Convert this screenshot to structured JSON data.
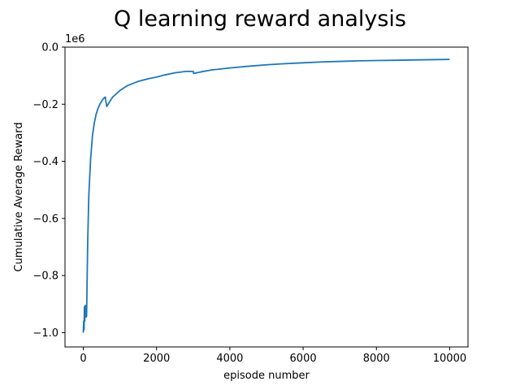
{
  "chart_data": {
    "type": "line",
    "title": "Q learning reward analysis",
    "xlabel": "episode number",
    "ylabel": "Cumulative Average Reward",
    "y_offset_label": "1e6",
    "xlim": [
      -500,
      10500
    ],
    "ylim": [
      -1.05,
      0.0
    ],
    "x_ticks": [
      0,
      2000,
      4000,
      6000,
      8000,
      10000
    ],
    "x_tick_labels": [
      "0",
      "2000",
      "4000",
      "6000",
      "8000",
      "10000"
    ],
    "y_ticks": [
      0.0,
      -0.2,
      -0.4,
      -0.6,
      -0.8,
      -1.0
    ],
    "y_tick_labels": [
      "0.0",
      "−0.2",
      "−0.4",
      "−0.6",
      "−0.8",
      "−1.0"
    ],
    "grid": false,
    "legend": "none",
    "series": [
      {
        "color": "#1f77b4",
        "x": [
          0,
          10,
          20,
          30,
          40,
          50,
          60,
          70,
          80,
          90,
          100,
          120,
          150,
          200,
          250,
          300,
          350,
          400,
          450,
          500,
          550,
          600,
          610,
          640,
          700,
          800,
          1000,
          1200,
          1500,
          1800,
          2000,
          2200,
          2500,
          2800,
          2950,
          3000,
          3010,
          3200,
          3500,
          4000,
          4500,
          5000,
          5500,
          6000,
          6500,
          7000,
          7500,
          8000,
          8500,
          9000,
          9500,
          10000
        ],
        "y": [
          -1.0,
          -0.96,
          -0.99,
          -0.91,
          -0.96,
          -0.905,
          -0.935,
          -0.905,
          -0.945,
          -0.94,
          -0.85,
          -0.68,
          -0.52,
          -0.39,
          -0.31,
          -0.265,
          -0.235,
          -0.215,
          -0.2,
          -0.19,
          -0.18,
          -0.175,
          -0.185,
          -0.208,
          -0.195,
          -0.175,
          -0.152,
          -0.135,
          -0.12,
          -0.11,
          -0.105,
          -0.098,
          -0.09,
          -0.085,
          -0.085,
          -0.085,
          -0.092,
          -0.087,
          -0.08,
          -0.073,
          -0.067,
          -0.062,
          -0.058,
          -0.055,
          -0.052,
          -0.05,
          -0.048,
          -0.047,
          -0.046,
          -0.045,
          -0.044,
          -0.043
        ]
      }
    ]
  }
}
